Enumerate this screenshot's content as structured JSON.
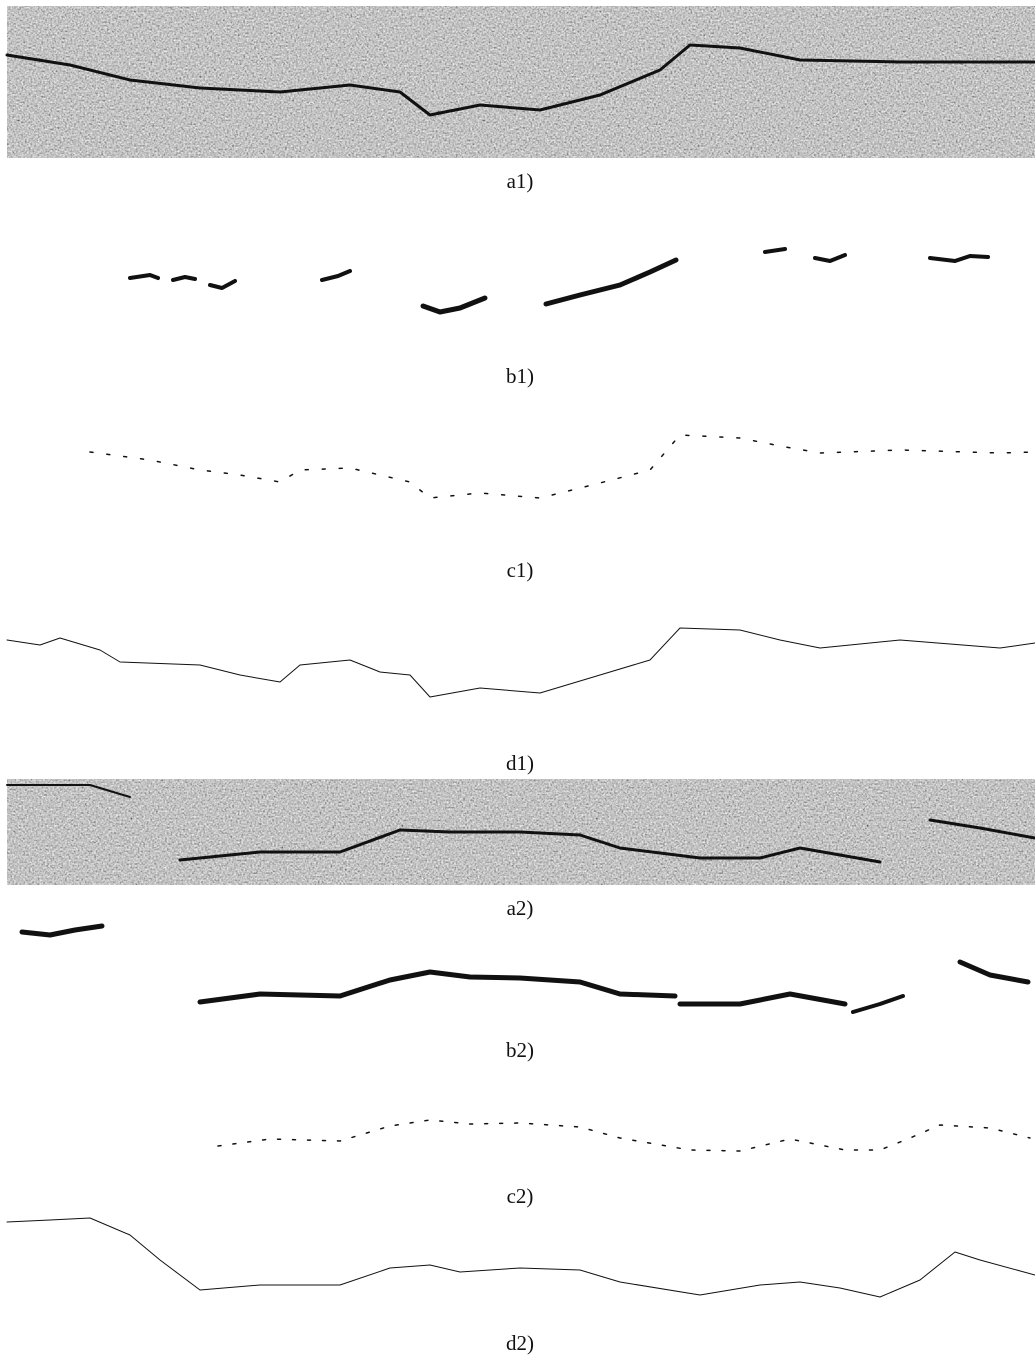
{
  "panels": [
    {
      "label": "a1)"
    },
    {
      "label": "b1)"
    },
    {
      "label": "c1)"
    },
    {
      "label": "d1)"
    },
    {
      "label": "a2)"
    },
    {
      "label": "b2)"
    },
    {
      "label": "c2)"
    },
    {
      "label": "d2)"
    }
  ]
}
